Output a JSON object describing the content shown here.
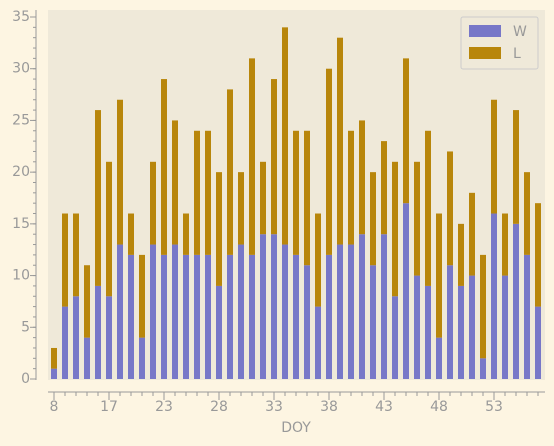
{
  "chart_data": {
    "type": "stacked_bar",
    "xlabel": "DOY",
    "categories": [
      "8",
      null,
      null,
      null,
      null,
      "17",
      null,
      null,
      null,
      null,
      "23",
      null,
      null,
      null,
      null,
      "28",
      null,
      null,
      null,
      null,
      "33",
      null,
      null,
      null,
      null,
      "38",
      null,
      null,
      null,
      null,
      "43",
      null,
      null,
      null,
      null,
      "48",
      null,
      null,
      null,
      null,
      "53",
      null,
      null,
      null,
      null
    ],
    "series": [
      {
        "name": "W",
        "color": "#7777c8",
        "values": [
          1,
          7,
          8,
          4,
          9,
          8,
          13,
          12,
          4,
          13,
          12,
          13,
          12,
          12,
          12,
          9,
          12,
          13,
          12,
          14,
          14,
          13,
          12,
          11,
          7,
          12,
          13,
          13,
          14,
          11,
          14,
          8,
          17,
          10,
          9,
          4,
          11,
          9,
          10,
          2,
          16,
          10,
          15,
          12,
          7
        ]
      },
      {
        "name": "L",
        "color": "#b8860b",
        "values": [
          2,
          9,
          8,
          7,
          17,
          13,
          14,
          4,
          8,
          8,
          17,
          12,
          4,
          12,
          12,
          11,
          16,
          7,
          19,
          7,
          15,
          21,
          12,
          13,
          9,
          18,
          20,
          11,
          11,
          9,
          9,
          13,
          14,
          11,
          15,
          12,
          11,
          6,
          8,
          10,
          11,
          6,
          11,
          8,
          10
        ]
      }
    ],
    "ylim": [
      0,
      35
    ],
    "yticks": [
      0,
      5,
      10,
      15,
      20,
      25,
      30,
      35
    ],
    "grid": false,
    "legend": "upper right"
  }
}
